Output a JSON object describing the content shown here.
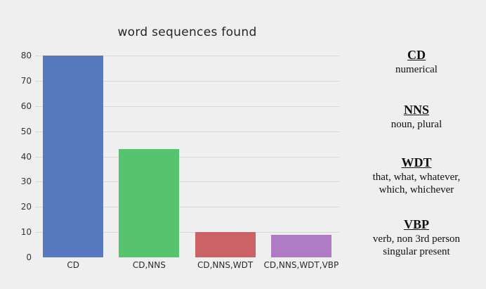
{
  "figure": {
    "background_color": "#efefef",
    "gridline_color": "#d8d8d8",
    "title_color": "#262626",
    "tick_label_color": "#333333"
  },
  "chart_data": {
    "type": "bar",
    "title": "word sequences found",
    "categories": [
      "CD",
      "CD,NNS",
      "CD,NNS,WDT",
      "CD,NNS,WDT,VBP"
    ],
    "values": [
      80,
      43,
      10,
      9
    ],
    "bar_colors": [
      "#5878C0",
      "#56C46F",
      "#CC6366",
      "#B07BC5"
    ],
    "xlabel": "",
    "ylabel": "",
    "ylim": [
      0,
      80
    ],
    "yticks": [
      0,
      10,
      20,
      30,
      40,
      50,
      60,
      70,
      80
    ],
    "grid": true,
    "legend_position": "none"
  },
  "definitions": {
    "items": [
      {
        "term": "CD",
        "definition": "numerical"
      },
      {
        "term": "NNS",
        "definition": "noun, plural"
      },
      {
        "term": "WDT",
        "definition": "that, what, whatever,\nwhich, whichever"
      },
      {
        "term": "VBP",
        "definition": "verb, non 3rd person\nsingular present"
      }
    ]
  }
}
